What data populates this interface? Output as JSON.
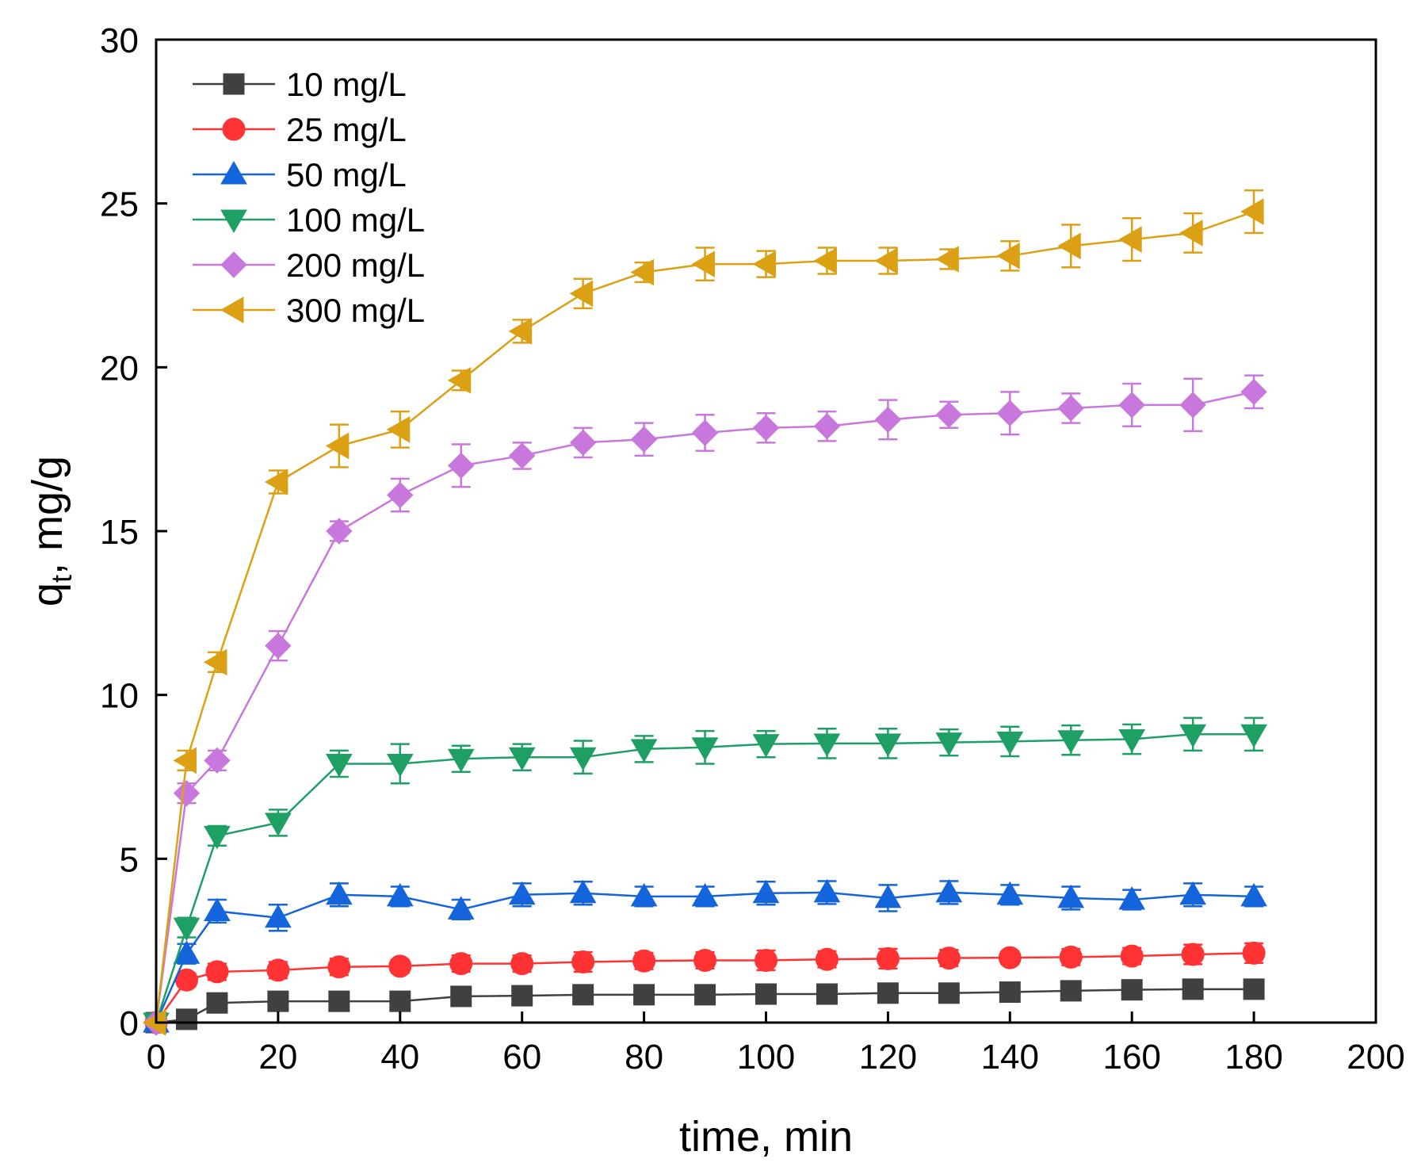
{
  "chart_data": {
    "type": "line",
    "title": "",
    "xlabel": "time, min",
    "ylabel_main": "q",
    "ylabel_sub": "t",
    "ylabel_suffix": ", mg/g",
    "xlim": [
      0,
      200
    ],
    "ylim": [
      0,
      30
    ],
    "xticks": [
      0,
      20,
      40,
      60,
      80,
      100,
      120,
      140,
      160,
      180,
      200
    ],
    "yticks": [
      0,
      5,
      10,
      15,
      20,
      25,
      30
    ],
    "legend_position": "top-left",
    "grid": false,
    "x": [
      0,
      5,
      10,
      20,
      30,
      40,
      50,
      60,
      70,
      80,
      90,
      100,
      110,
      120,
      130,
      140,
      150,
      160,
      170,
      180
    ],
    "series": [
      {
        "name": "10 mg/L",
        "color": "#404040",
        "marker": "square",
        "values": [
          0,
          0.1,
          0.6,
          0.65,
          0.65,
          0.65,
          0.8,
          0.82,
          0.85,
          0.85,
          0.85,
          0.87,
          0.87,
          0.9,
          0.9,
          0.93,
          0.97,
          1.0,
          1.02,
          1.02
        ],
        "errors": [
          0,
          0.05,
          0.1,
          0.1,
          0.1,
          0.1,
          0.12,
          0.15,
          0.15,
          0.12,
          0.12,
          0.12,
          0.12,
          0.12,
          0.12,
          0.12,
          0.12,
          0.12,
          0.12,
          0.12
        ]
      },
      {
        "name": "25 mg/L",
        "color": "#ff3333",
        "marker": "circle",
        "values": [
          0,
          1.3,
          1.55,
          1.6,
          1.7,
          1.72,
          1.8,
          1.8,
          1.85,
          1.88,
          1.9,
          1.9,
          1.93,
          1.95,
          1.97,
          1.98,
          2.0,
          2.03,
          2.08,
          2.12
        ],
        "errors": [
          0,
          0.2,
          0.25,
          0.25,
          0.25,
          0.2,
          0.25,
          0.25,
          0.3,
          0.25,
          0.25,
          0.3,
          0.25,
          0.3,
          0.25,
          0.2,
          0.25,
          0.25,
          0.3,
          0.3
        ]
      },
      {
        "name": "50 mg/L",
        "color": "#1464dc",
        "marker": "triangle-up",
        "values": [
          0,
          2.1,
          3.4,
          3.2,
          3.9,
          3.85,
          3.45,
          3.9,
          3.95,
          3.85,
          3.85,
          3.95,
          3.97,
          3.8,
          3.97,
          3.9,
          3.8,
          3.75,
          3.9,
          3.85
        ],
        "errors": [
          0,
          0.3,
          0.35,
          0.4,
          0.35,
          0.3,
          0.3,
          0.35,
          0.35,
          0.3,
          0.3,
          0.35,
          0.35,
          0.4,
          0.35,
          0.3,
          0.35,
          0.3,
          0.35,
          0.3
        ]
      },
      {
        "name": "100 mg/L",
        "color": "#1ea064",
        "marker": "triangle-down",
        "values": [
          0,
          2.9,
          5.7,
          6.1,
          7.9,
          7.9,
          8.05,
          8.1,
          8.1,
          8.35,
          8.4,
          8.5,
          8.52,
          8.52,
          8.55,
          8.58,
          8.62,
          8.65,
          8.8,
          8.8
        ],
        "errors": [
          0,
          0.3,
          0.3,
          0.4,
          0.4,
          0.6,
          0.4,
          0.4,
          0.5,
          0.4,
          0.5,
          0.4,
          0.45,
          0.45,
          0.4,
          0.45,
          0.45,
          0.45,
          0.5,
          0.5
        ]
      },
      {
        "name": "200 mg/L",
        "color": "#c878dc",
        "marker": "diamond",
        "values": [
          0,
          7.0,
          8.0,
          11.5,
          15.0,
          16.1,
          17.0,
          17.3,
          17.7,
          17.8,
          18.0,
          18.15,
          18.2,
          18.4,
          18.55,
          18.6,
          18.75,
          18.85,
          18.85,
          19.25
        ],
        "errors": [
          0,
          0.3,
          0.3,
          0.45,
          0.3,
          0.5,
          0.65,
          0.4,
          0.45,
          0.5,
          0.55,
          0.45,
          0.45,
          0.6,
          0.4,
          0.65,
          0.45,
          0.65,
          0.8,
          0.5
        ]
      },
      {
        "name": "300 mg/L",
        "color": "#dca014",
        "marker": "triangle-left",
        "values": [
          0,
          8.0,
          11.0,
          16.5,
          17.6,
          18.1,
          19.6,
          21.1,
          22.25,
          22.9,
          23.15,
          23.15,
          23.25,
          23.25,
          23.3,
          23.4,
          23.7,
          23.9,
          24.1,
          24.75
        ],
        "errors": [
          0,
          0.3,
          0.3,
          0.35,
          0.65,
          0.55,
          0.3,
          0.35,
          0.45,
          0.3,
          0.5,
          0.4,
          0.4,
          0.4,
          0.3,
          0.45,
          0.65,
          0.65,
          0.6,
          0.65
        ]
      }
    ]
  }
}
